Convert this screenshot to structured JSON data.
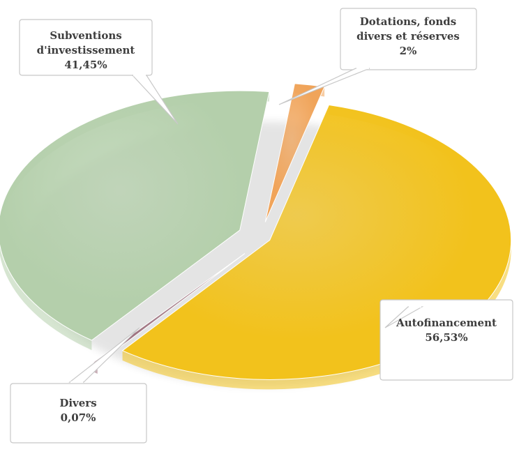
{
  "chart_data": {
    "type": "pie",
    "title": "",
    "slices": [
      {
        "name_lines": [
          "Dotations, fonds",
          "divers et réserves"
        ],
        "value_label": "2%",
        "value": 2,
        "color": "#f0a45a"
      },
      {
        "name_lines": [
          "Autofinancement"
        ],
        "value_label": "56,53%",
        "value": 56.53,
        "color": "#f2c21c"
      },
      {
        "name_lines": [
          "Divers"
        ],
        "value_label": "0,07%",
        "value": 0.07,
        "color": "#9c6e7c"
      },
      {
        "name_lines": [
          "Subventions",
          "d'investissement"
        ],
        "value_label": "41,45%",
        "value": 41.45,
        "color": "#b4cfab"
      }
    ]
  }
}
